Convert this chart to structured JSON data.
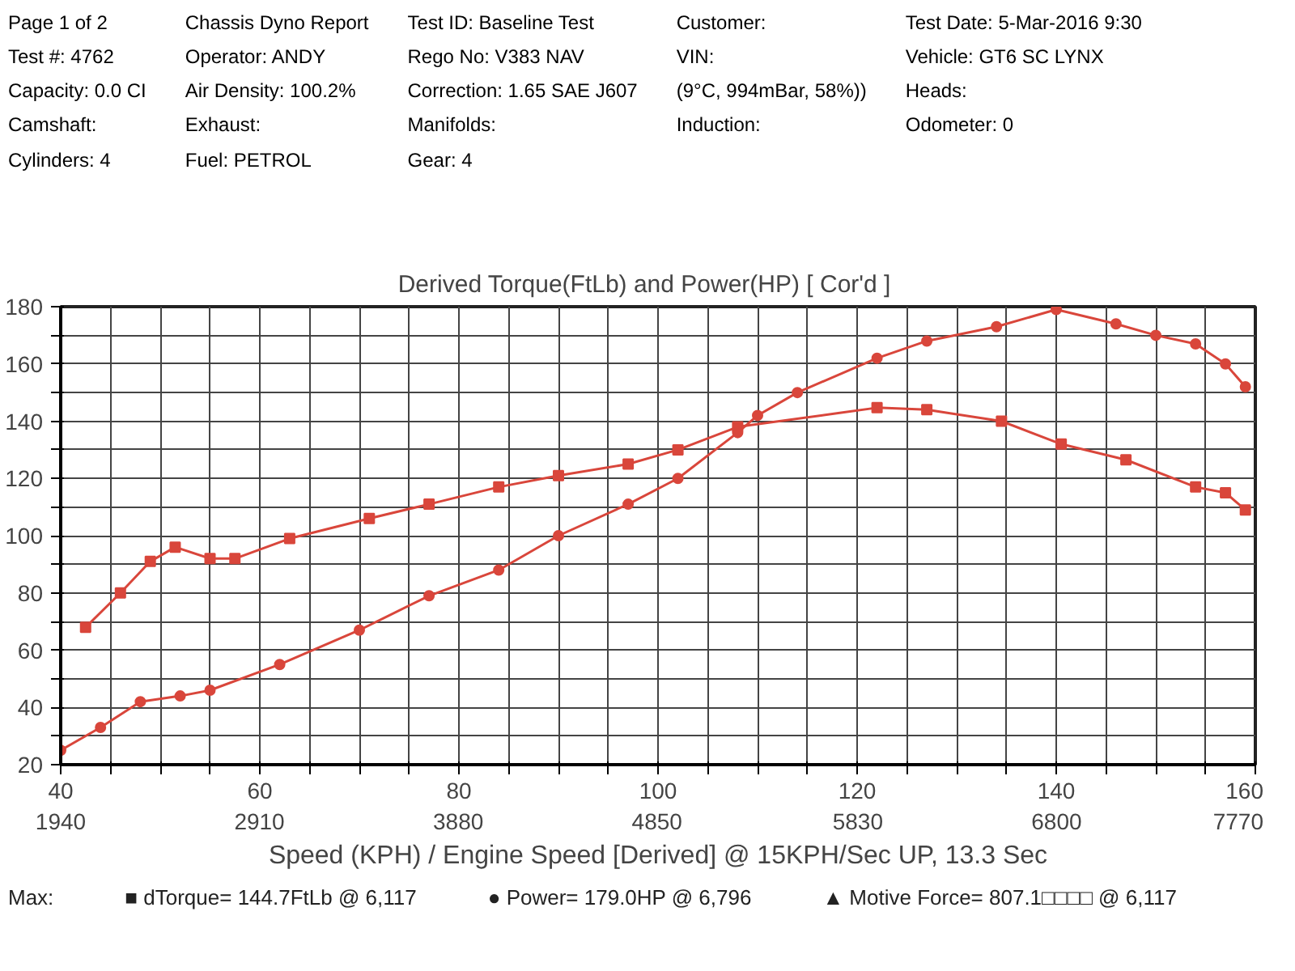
{
  "chart_data": {
    "type": "line",
    "title": "Derived Torque(FtLb) and Power(HP)     [ Cor'd ]",
    "xlabel": "Speed (KPH) / Engine Speed [Derived] @ 15KPH/Sec UP, 13.3 Sec",
    "xlim": [
      40,
      160
    ],
    "ylim": [
      20,
      180
    ],
    "xticks": [
      40,
      {
        "value": 45,
        "label": null
      },
      {
        "value": 50,
        "label": null
      },
      {
        "value": 55,
        "label": null
      },
      60,
      {
        "value": 65,
        "label": null
      },
      {
        "value": 70,
        "label": null
      },
      {
        "value": 75,
        "label": null
      },
      80,
      {
        "value": 85,
        "label": null
      },
      {
        "value": 90,
        "label": null
      },
      {
        "value": 95,
        "label": null
      },
      100,
      {
        "value": 105,
        "label": null
      },
      {
        "value": 110,
        "label": null
      },
      {
        "value": 115,
        "label": null
      },
      120,
      {
        "value": 125,
        "label": null
      },
      {
        "value": 130,
        "label": null
      },
      {
        "value": 135,
        "label": null
      },
      140,
      {
        "value": 145,
        "label": null
      },
      {
        "value": 150,
        "label": null
      },
      {
        "value": 155,
        "label": null
      },
      160
    ],
    "x2lim": [
      1940,
      7770
    ],
    "x2ticks": [
      1940,
      2910,
      3880,
      4850,
      5830,
      6800,
      7770
    ],
    "yticks": [
      20,
      {
        "value": 30,
        "label": null
      },
      40,
      {
        "value": 50,
        "label": null
      },
      60,
      {
        "value": 70,
        "label": null
      },
      80,
      {
        "value": 90,
        "label": null
      },
      100,
      {
        "value": 110,
        "label": null
      },
      120,
      {
        "value": 130,
        "label": null
      },
      140,
      {
        "value": 150,
        "label": null
      },
      160,
      {
        "value": 170,
        "label": null
      },
      180
    ],
    "grid": true,
    "line_style": "solid",
    "series": [
      {
        "color": "#d9463b",
        "marker": "square",
        "x": [
          42.5,
          46,
          49,
          51.5,
          55,
          57.5,
          63,
          71,
          77,
          84,
          90,
          97,
          102,
          108,
          122,
          127,
          134.5,
          140.5,
          147,
          154,
          157,
          159
        ],
        "values": [
          68,
          80,
          91,
          96,
          92,
          92,
          99,
          106,
          111,
          117,
          121,
          125,
          130,
          138,
          144.7,
          144,
          140,
          132,
          126.5,
          117,
          115,
          109
        ]
      },
      {
        "color": "#d9463b",
        "marker": "circle",
        "x": [
          40,
          44,
          48,
          52,
          55,
          62,
          70,
          77,
          84,
          90,
          97,
          102,
          108,
          110,
          114,
          122,
          127,
          134,
          140,
          146,
          150,
          154,
          157,
          159
        ],
        "values": [
          25,
          33,
          42,
          44,
          46,
          55,
          67,
          79,
          88,
          100,
          111,
          120,
          136,
          142,
          150,
          162,
          168,
          173,
          179,
          174,
          170,
          167,
          160,
          152
        ]
      }
    ],
    "annotations": [
      "Page 1 of 2",
      "Chassis Dyno Report",
      "Test ID: Baseline Test",
      "Customer:",
      "Test Date: 5-Mar-2016 9:30",
      "Test #: 4762",
      "Operator: ANDY",
      "Rego No: V383 NAV",
      "VIN:",
      "Vehicle: GT6 SC LYNX",
      "Capacity: 0.0 CI",
      "Air Density: 100.2%",
      "Correction: 1.65 SAE J607",
      "(9°C, 994mBar, 58%))",
      "Heads:",
      "Camshaft:",
      "Exhaust:",
      "Manifolds:",
      "Induction:",
      "Odometer: 0",
      "Cylinders: 4",
      "Fuel: PETROL",
      "Gear: 4",
      "Max:",
      "■ dTorque= 144.7FtLb @ 6,117",
      "● Power= 179.0HP @ 6,796",
      "▲ Motive Force= 807.1□□□□ @ 6,117"
    ]
  }
}
